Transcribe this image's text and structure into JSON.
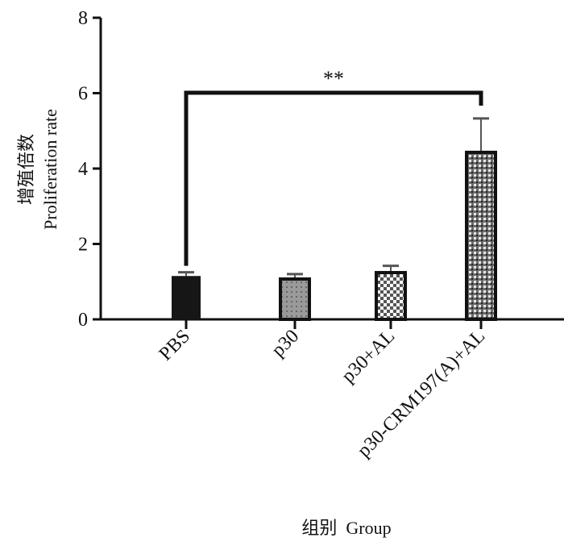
{
  "chart_data": {
    "type": "bar",
    "categories": [
      "PBS",
      "p30",
      "p30+AL",
      "p30-CRM197(A)+AL"
    ],
    "values": [
      1.15,
      1.07,
      1.24,
      4.43
    ],
    "error_upper": [
      1.25,
      1.2,
      1.42,
      5.33
    ],
    "bar_fills": [
      "solid-black",
      "grey-dotted",
      "checkerboard",
      "dark-checkerboard"
    ],
    "ylabel_cn": "增殖倍数",
    "ylabel": "Proliferation rate",
    "xlabel": "组别  Group",
    "ylim": [
      0,
      8
    ],
    "yticks": [
      "0",
      "2",
      "4",
      "6",
      "8"
    ],
    "grid": false,
    "legend": "none",
    "annotations": [
      {
        "text": "**",
        "from": "PBS",
        "to": "p30-CRM197(A)+AL"
      }
    ]
  }
}
